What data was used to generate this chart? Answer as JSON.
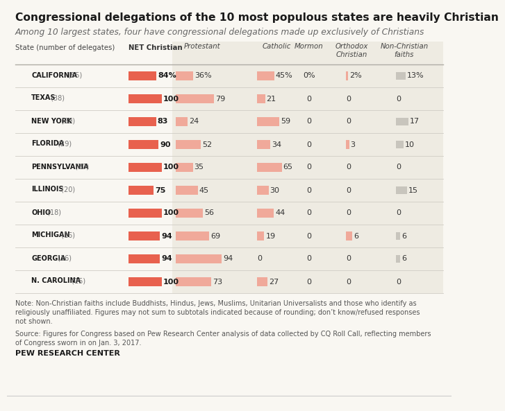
{
  "title": "Congressional delegations of the 10 most populous states are heavily Christian",
  "subtitle": "Among 10 largest states, four have congressional delegations made up exclusively of Christians",
  "col_header_state": "State (number of delegates)",
  "col_header_net": "NET Christian",
  "col_headers": [
    "Protestant",
    "Catholic",
    "Mormon",
    "Orthodox\nChristian",
    "Non-Christian\nfaiths"
  ],
  "states": [
    {
      "name": "CALIFORNIA",
      "delegates": 55,
      "net": 84,
      "net_label": "84%",
      "protestant": 36,
      "protestant_label": "36%",
      "catholic": 45,
      "catholic_label": "45%",
      "mormon": 0,
      "mormon_label": "0%",
      "orthodox": 2,
      "orthodox_label": "2%",
      "non_christian": 13,
      "non_christian_label": "13%"
    },
    {
      "name": "TEXAS",
      "delegates": 38,
      "net": 100,
      "net_label": "100",
      "protestant": 79,
      "protestant_label": "79",
      "catholic": 21,
      "catholic_label": "21",
      "mormon": 0,
      "mormon_label": "0",
      "orthodox": 0,
      "orthodox_label": "0",
      "non_christian": 0,
      "non_christian_label": "0"
    },
    {
      "name": "NEW YORK",
      "delegates": 29,
      "net": 83,
      "net_label": "83",
      "protestant": 24,
      "protestant_label": "24",
      "catholic": 59,
      "catholic_label": "59",
      "mormon": 0,
      "mormon_label": "0",
      "orthodox": 0,
      "orthodox_label": "0",
      "non_christian": 17,
      "non_christian_label": "17"
    },
    {
      "name": "FLORIDA",
      "delegates": 29,
      "net": 90,
      "net_label": "90",
      "protestant": 52,
      "protestant_label": "52",
      "catholic": 34,
      "catholic_label": "34",
      "mormon": 0,
      "mormon_label": "0",
      "orthodox": 3,
      "orthodox_label": "3",
      "non_christian": 10,
      "non_christian_label": "10"
    },
    {
      "name": "PENNSYLVANIA",
      "delegates": 20,
      "net": 100,
      "net_label": "100",
      "protestant": 35,
      "protestant_label": "35",
      "catholic": 65,
      "catholic_label": "65",
      "mormon": 0,
      "mormon_label": "0",
      "orthodox": 0,
      "orthodox_label": "0",
      "non_christian": 0,
      "non_christian_label": "0"
    },
    {
      "name": "ILLINOIS",
      "delegates": 20,
      "net": 75,
      "net_label": "75",
      "protestant": 45,
      "protestant_label": "45",
      "catholic": 30,
      "catholic_label": "30",
      "mormon": 0,
      "mormon_label": "0",
      "orthodox": 0,
      "orthodox_label": "0",
      "non_christian": 15,
      "non_christian_label": "15"
    },
    {
      "name": "OHIO",
      "delegates": 18,
      "net": 100,
      "net_label": "100",
      "protestant": 56,
      "protestant_label": "56",
      "catholic": 44,
      "catholic_label": "44",
      "mormon": 0,
      "mormon_label": "0",
      "orthodox": 0,
      "orthodox_label": "0",
      "non_christian": 0,
      "non_christian_label": "0"
    },
    {
      "name": "MICHIGAN",
      "delegates": 16,
      "net": 94,
      "net_label": "94",
      "protestant": 69,
      "protestant_label": "69",
      "catholic": 19,
      "catholic_label": "19",
      "mormon": 0,
      "mormon_label": "0",
      "orthodox": 6,
      "orthodox_label": "6",
      "non_christian": 6,
      "non_christian_label": "6"
    },
    {
      "name": "GEORGIA",
      "delegates": 16,
      "net": 94,
      "net_label": "94",
      "protestant": 94,
      "protestant_label": "94",
      "catholic": 0,
      "catholic_label": "0",
      "mormon": 0,
      "mormon_label": "0",
      "orthodox": 0,
      "orthodox_label": "0",
      "non_christian": 6,
      "non_christian_label": "6"
    },
    {
      "name": "N. CAROLINA",
      "delegates": 15,
      "net": 100,
      "net_label": "100",
      "protestant": 73,
      "protestant_label": "73",
      "catholic": 27,
      "catholic_label": "27",
      "mormon": 0,
      "mormon_label": "0",
      "orthodox": 0,
      "orthodox_label": "0",
      "non_christian": 0,
      "non_christian_label": "0"
    }
  ],
  "colors": {
    "bg": "#f9f7f2",
    "table_bg": "#eeebe2",
    "net_bar": "#e8614e",
    "christian_bar": "#f0a99a",
    "non_christian_bar": "#c8c5bd",
    "title_color": "#1a1a1a",
    "subtitle_color": "#666666",
    "note_color": "#555555",
    "state_name_color": "#1a1a1a",
    "divider_color": "#d0cdc5",
    "header_divider": "#b0ada5"
  },
  "note": "Note: Non-Christian faiths include Buddhists, Hindus, Jews, Muslims, Unitarian Universalists and those who identify as\nreligiously unaffiliated. Figures may not sum to subtotals indicated because of rounding; don’t know/refused responses\nnot shown.",
  "source": "Source: Figures for Congress based on Pew Research Center analysis of data collected by CQ Roll Call, reflecting members\nof Congress sworn in on Jan. 3, 2017.",
  "branding": "PEW RESEARCH CENTER"
}
